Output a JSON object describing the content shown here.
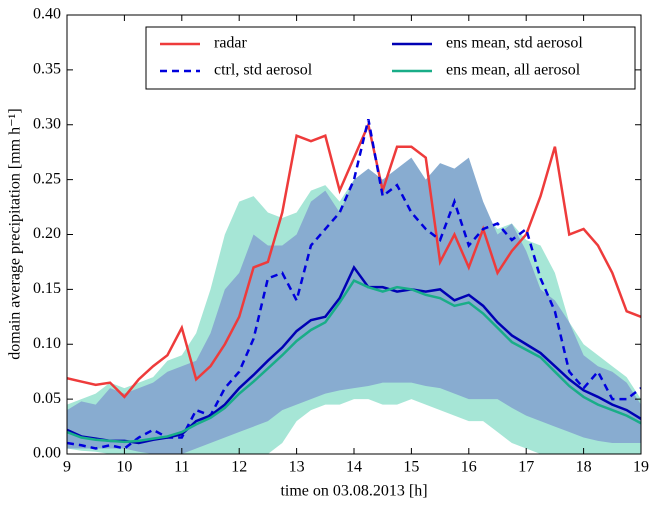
{
  "chart_data": {
    "type": "line",
    "xlabel": "time on 03.08.2013 [h]",
    "ylabel": "domain average precipitation [mm h⁻¹]",
    "x": [
      9,
      9.25,
      9.5,
      9.75,
      10,
      10.25,
      10.5,
      10.75,
      11,
      11.25,
      11.5,
      11.75,
      12,
      12.25,
      12.5,
      12.75,
      13,
      13.25,
      13.5,
      13.75,
      14,
      14.25,
      14.5,
      14.75,
      15,
      15.25,
      15.5,
      15.75,
      16,
      16.25,
      16.5,
      16.75,
      17,
      17.25,
      17.5,
      17.75,
      18,
      18.25,
      18.5,
      18.75,
      19
    ],
    "xlim": [
      9,
      19
    ],
    "xticks": [
      9,
      10,
      11,
      12,
      13,
      14,
      15,
      16,
      17,
      18,
      19
    ],
    "ylim": [
      0,
      0.4
    ],
    "yticks": [
      {
        "value": 0,
        "label": "0.00"
      },
      {
        "value": 0.05,
        "label": "0.05"
      },
      {
        "value": 0.1,
        "label": "0.10"
      },
      {
        "value": 0.15,
        "label": "0.15"
      },
      {
        "value": 0.2,
        "label": "0.20"
      },
      {
        "value": 0.25,
        "label": "0.25"
      },
      {
        "value": 0.3,
        "label": "0.30"
      },
      {
        "value": 0.35,
        "label": "0.35"
      },
      {
        "value": 0.4,
        "label": "0.40"
      }
    ],
    "legend": "upper right",
    "bands": [
      {
        "color": "#a6e6d6",
        "upper": [
          0.045,
          0.05,
          0.055,
          0.065,
          0.06,
          0.065,
          0.07,
          0.085,
          0.09,
          0.11,
          0.15,
          0.2,
          0.23,
          0.235,
          0.22,
          0.215,
          0.22,
          0.24,
          0.245,
          0.23,
          0.25,
          0.255,
          0.25,
          0.255,
          0.26,
          0.25,
          0.255,
          0.25,
          0.24,
          0.22,
          0.205,
          0.21,
          0.195,
          0.19,
          0.165,
          0.12,
          0.1,
          0.09,
          0.08,
          0.07,
          0.05
        ],
        "lower": [
          0.005,
          0.003,
          0.002,
          0.0,
          0.0,
          0.0,
          0.0,
          0.0,
          0.0,
          0.0,
          0.0,
          0.0,
          0.0,
          0.0,
          0.0,
          0.01,
          0.03,
          0.04,
          0.045,
          0.045,
          0.05,
          0.05,
          0.045,
          0.045,
          0.05,
          0.045,
          0.04,
          0.035,
          0.03,
          0.03,
          0.02,
          0.01,
          0.005,
          0.0,
          0.0,
          0.0,
          0.0,
          0.0,
          0.0,
          0.0,
          0.0
        ]
      },
      {
        "color": "#88acd0",
        "upper": [
          0.04,
          0.048,
          0.045,
          0.06,
          0.055,
          0.06,
          0.065,
          0.075,
          0.08,
          0.085,
          0.11,
          0.15,
          0.165,
          0.2,
          0.19,
          0.19,
          0.2,
          0.23,
          0.24,
          0.22,
          0.25,
          0.26,
          0.25,
          0.26,
          0.27,
          0.25,
          0.265,
          0.26,
          0.27,
          0.23,
          0.2,
          0.21,
          0.185,
          0.15,
          0.14,
          0.12,
          0.09,
          0.08,
          0.075,
          0.065,
          0.045
        ],
        "lower": [
          0.005,
          0.005,
          0.005,
          0.005,
          0.005,
          0.002,
          0.0,
          0.0,
          0.0,
          0.005,
          0.01,
          0.015,
          0.02,
          0.025,
          0.03,
          0.04,
          0.045,
          0.05,
          0.055,
          0.058,
          0.06,
          0.062,
          0.065,
          0.065,
          0.065,
          0.062,
          0.06,
          0.055,
          0.05,
          0.05,
          0.05,
          0.042,
          0.035,
          0.03,
          0.025,
          0.02,
          0.015,
          0.012,
          0.01,
          0.01,
          0.01
        ]
      }
    ],
    "series": [
      {
        "name": "radar",
        "color": "#ee3b3b",
        "dash": false,
        "values": [
          0.069,
          0.066,
          0.063,
          0.065,
          0.052,
          0.068,
          0.08,
          0.09,
          0.115,
          0.068,
          0.08,
          0.1,
          0.125,
          0.17,
          0.175,
          0.22,
          0.29,
          0.285,
          0.29,
          0.24,
          0.27,
          0.3,
          0.24,
          0.28,
          0.28,
          0.27,
          0.175,
          0.2,
          0.17,
          0.205,
          0.165,
          0.185,
          0.2,
          0.235,
          0.28,
          0.2,
          0.205,
          0.19,
          0.165,
          0.13,
          0.125
        ]
      },
      {
        "name": "ctrl, std aerosol",
        "color": "#0000dd",
        "dash": true,
        "values": [
          0.01,
          0.008,
          0.005,
          0.008,
          0.005,
          0.015,
          0.022,
          0.015,
          0.015,
          0.04,
          0.035,
          0.06,
          0.075,
          0.105,
          0.16,
          0.165,
          0.14,
          0.19,
          0.205,
          0.22,
          0.25,
          0.305,
          0.235,
          0.245,
          0.22,
          0.205,
          0.195,
          0.23,
          0.19,
          0.205,
          0.21,
          0.195,
          0.205,
          0.16,
          0.13,
          0.075,
          0.06,
          0.075,
          0.05,
          0.05,
          0.06
        ]
      },
      {
        "name": "ens mean, std aerosol",
        "color": "#0000b4",
        "dash": false,
        "values": [
          0.022,
          0.016,
          0.014,
          0.012,
          0.012,
          0.01,
          0.013,
          0.015,
          0.018,
          0.03,
          0.035,
          0.045,
          0.06,
          0.072,
          0.085,
          0.097,
          0.112,
          0.122,
          0.125,
          0.142,
          0.17,
          0.152,
          0.152,
          0.148,
          0.15,
          0.148,
          0.15,
          0.14,
          0.145,
          0.135,
          0.12,
          0.108,
          0.1,
          0.092,
          0.08,
          0.068,
          0.058,
          0.052,
          0.045,
          0.04,
          0.032
        ]
      },
      {
        "name": "ens mean, all aerosol",
        "color": "#19ad88",
        "dash": false,
        "values": [
          0.02,
          0.015,
          0.013,
          0.012,
          0.011,
          0.012,
          0.014,
          0.016,
          0.02,
          0.027,
          0.033,
          0.042,
          0.055,
          0.066,
          0.078,
          0.09,
          0.103,
          0.113,
          0.12,
          0.138,
          0.158,
          0.152,
          0.148,
          0.152,
          0.15,
          0.145,
          0.142,
          0.135,
          0.138,
          0.128,
          0.115,
          0.102,
          0.095,
          0.088,
          0.075,
          0.062,
          0.052,
          0.045,
          0.04,
          0.035,
          0.028
        ]
      }
    ]
  }
}
